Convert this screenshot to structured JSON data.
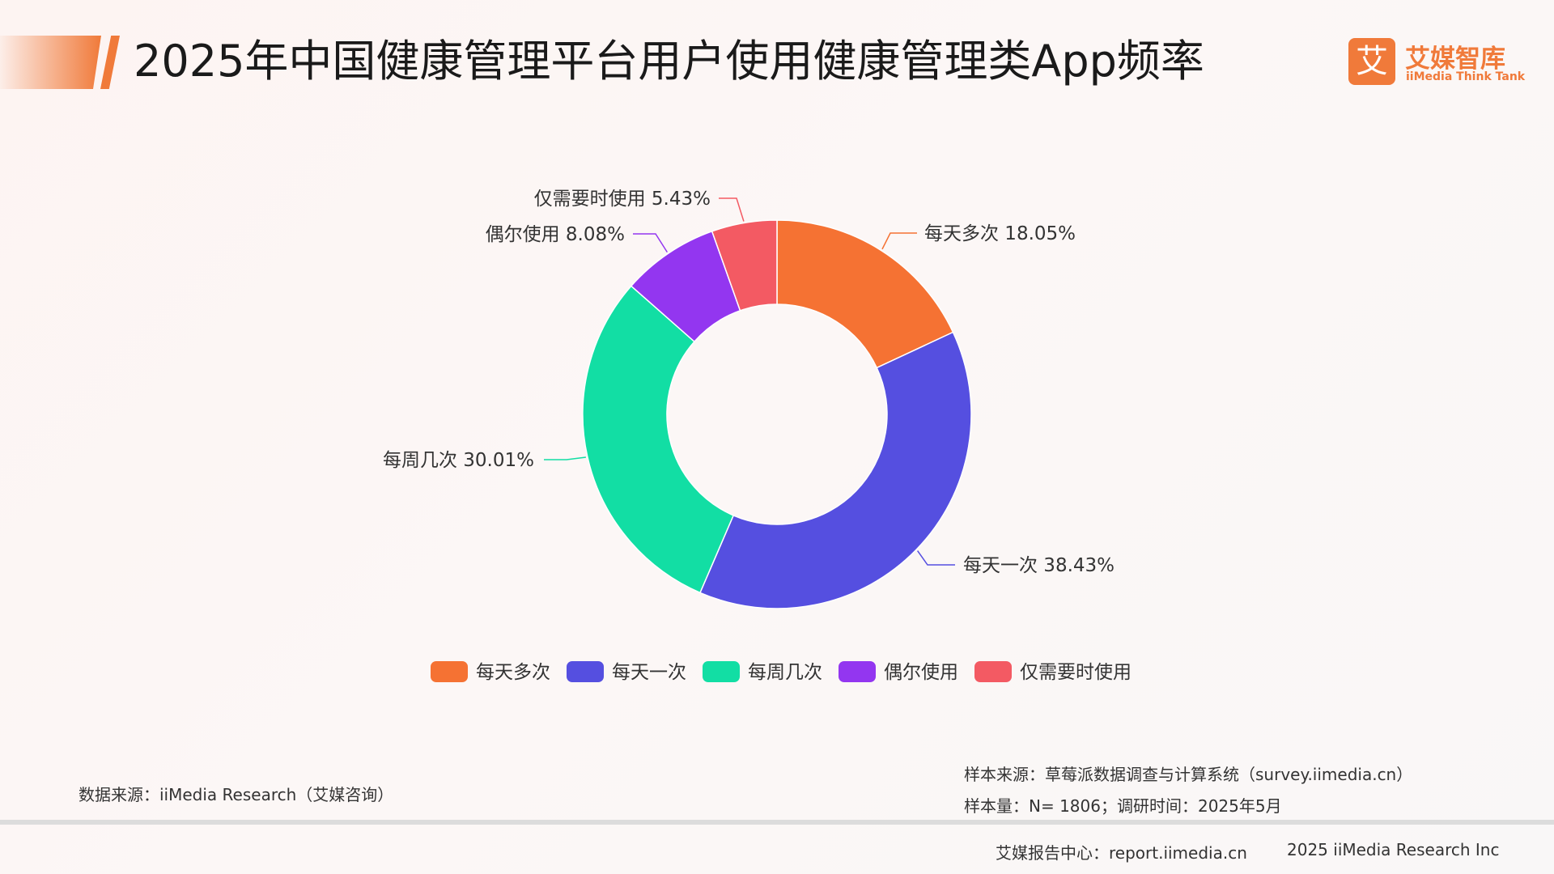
{
  "header": {
    "title": "2025年中国健康管理平台用户使用健康管理类App频率",
    "logo_mark": "艾",
    "logo_cn": "艾媒智库",
    "logo_en": "iiMedia Think Tank"
  },
  "colors": {
    "accent": "#f07a3a",
    "series": [
      "#f57233",
      "#554fe0",
      "#12dea4",
      "#9336f0",
      "#f35a63"
    ]
  },
  "chart_data": {
    "type": "pie",
    "variant": "donut",
    "title": "2025年中国健康管理平台用户使用健康管理类App频率",
    "categories": [
      "每天多次",
      "每天一次",
      "每周几次",
      "偶尔使用",
      "仅需要时使用"
    ],
    "values": [
      18.05,
      38.43,
      30.01,
      8.08,
      5.43
    ],
    "unit": "%",
    "data_labels": [
      "每天多次 18.05%",
      "每天一次 38.43%",
      "每周几次 30.01%",
      "偶尔使用 8.08%",
      "仅需要时使用 5.43%"
    ],
    "legend": {
      "position": "bottom",
      "entries": [
        "每天多次",
        "每天一次",
        "每周几次",
        "偶尔使用",
        "仅需要时使用"
      ]
    }
  },
  "footer": {
    "data_source": "数据来源：iiMedia Research（艾媒咨询）",
    "sample_source": "样本来源：草莓派数据调查与计算系统（survey.iimedia.cn）",
    "sample_size": "样本量：N= 1806；调研时间：2025年5月",
    "report_center": "艾媒报告中心：report.iimedia.cn",
    "copyright": "2025 iiMedia Research Inc"
  }
}
